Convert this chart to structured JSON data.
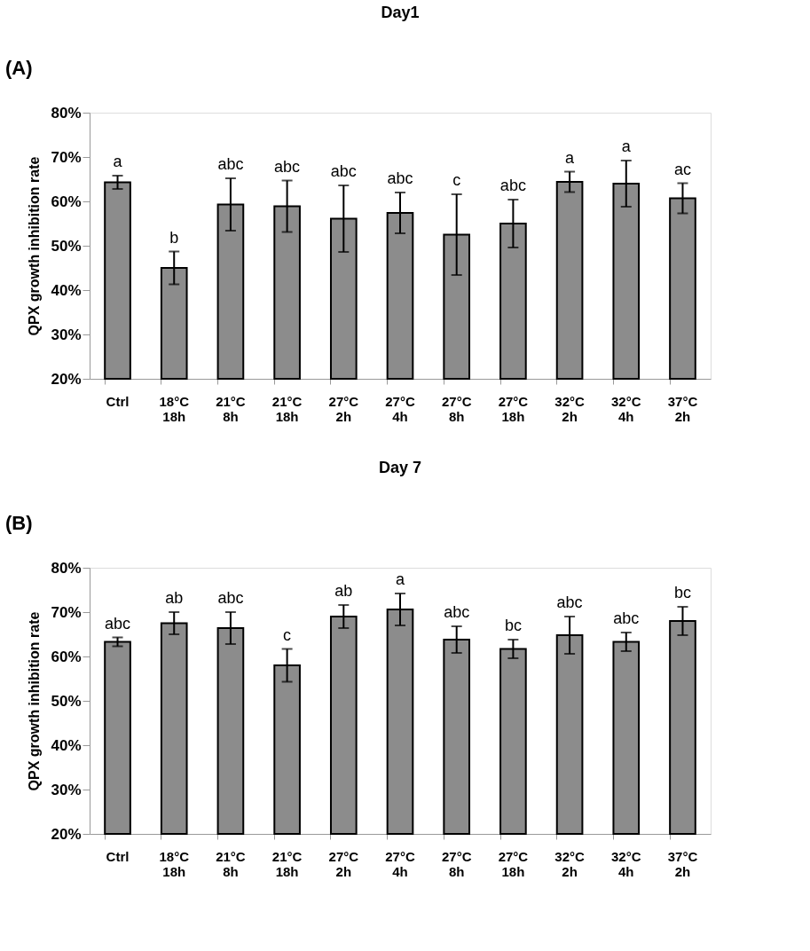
{
  "chart_data": [
    {
      "type": "bar",
      "title": "Day1",
      "ylabel": "QPX growth inhibition rate",
      "categories": [
        "Ctrl",
        "18°C 18h",
        "21°C 8h",
        "21°C 18h",
        "27°C 2h",
        "27°C 4h",
        "27°C 8h",
        "27°C 18h",
        "32°C 2h",
        "32°C 4h",
        "37°C 2h"
      ],
      "values": [
        64.3,
        45.0,
        59.3,
        58.9,
        56.1,
        57.4,
        52.5,
        55.0,
        64.4,
        64.0,
        60.7
      ],
      "errors": [
        1.5,
        3.7,
        5.9,
        5.8,
        7.5,
        4.6,
        9.1,
        5.4,
        2.3,
        5.2,
        3.4
      ],
      "color": "#8c8c8c",
      "ylim": [
        20,
        80
      ],
      "yticks": [
        {
          "value": 20,
          "label": "20%"
        },
        {
          "value": 30,
          "label": "30%"
        },
        {
          "value": 40,
          "label": "40%"
        },
        {
          "value": 50,
          "label": "50%"
        },
        {
          "value": 60,
          "label": "60%"
        },
        {
          "value": 70,
          "label": "70%"
        },
        {
          "value": 80,
          "label": "80%"
        }
      ],
      "grid": false,
      "annotations": [
        "(A)",
        {
          "text": "a",
          "x": "Ctrl",
          "y": 65.8
        },
        {
          "text": "b",
          "x": "18°C 18h",
          "y": 48.7
        },
        {
          "text": "abc",
          "x": "21°C 8h",
          "y": 65.2
        },
        {
          "text": "abc",
          "x": "21°C 18h",
          "y": 64.7
        },
        {
          "text": "abc",
          "x": "27°C 2h",
          "y": 63.6
        },
        {
          "text": "abc",
          "x": "27°C 4h",
          "y": 62.0
        },
        {
          "text": "c",
          "x": "27°C 8h",
          "y": 61.6
        },
        {
          "text": "abc",
          "x": "27°C 18h",
          "y": 60.4
        },
        {
          "text": "a",
          "x": "32°C 2h",
          "y": 66.7
        },
        {
          "text": "a",
          "x": "32°C 4h",
          "y": 69.2
        },
        {
          "text": "ac",
          "x": "37°C 2h",
          "y": 64.1
        }
      ]
    },
    {
      "type": "bar",
      "title": "Day 7",
      "ylabel": "QPX growth inhibition rate",
      "categories": [
        "Ctrl",
        "18°C 18h",
        "21°C 8h",
        "21°C 18h",
        "27°C 2h",
        "27°C 4h",
        "27°C 8h",
        "27°C 18h",
        "32°C 2h",
        "32°C 4h",
        "37°C 2h"
      ],
      "values": [
        63.3,
        67.5,
        66.4,
        58.0,
        69.0,
        70.6,
        63.8,
        61.7,
        64.8,
        63.3,
        68.0
      ],
      "errors": [
        1.0,
        2.5,
        3.6,
        3.7,
        2.6,
        3.6,
        3.0,
        2.1,
        4.2,
        2.1,
        3.2
      ],
      "color": "#8c8c8c",
      "ylim": [
        20,
        80
      ],
      "yticks": [
        {
          "value": 20,
          "label": "20%"
        },
        {
          "value": 30,
          "label": "30%"
        },
        {
          "value": 40,
          "label": "40%"
        },
        {
          "value": 50,
          "label": "50%"
        },
        {
          "value": 60,
          "label": "60%"
        },
        {
          "value": 70,
          "label": "70%"
        },
        {
          "value": 80,
          "label": "80%"
        }
      ],
      "grid": false,
      "annotations": [
        "(B)",
        {
          "text": "abc",
          "x": "Ctrl",
          "y": 64.3
        },
        {
          "text": "ab",
          "x": "18°C 18h",
          "y": 70.0
        },
        {
          "text": "abc",
          "x": "21°C 8h",
          "y": 70.0
        },
        {
          "text": "c",
          "x": "21°C 18h",
          "y": 61.7
        },
        {
          "text": "ab",
          "x": "27°C 2h",
          "y": 71.6
        },
        {
          "text": "a",
          "x": "27°C 4h",
          "y": 74.2
        },
        {
          "text": "abc",
          "x": "27°C 8h",
          "y": 66.8
        },
        {
          "text": "bc",
          "x": "27°C 18h",
          "y": 63.8
        },
        {
          "text": "abc",
          "x": "32°C 2h",
          "y": 69.0
        },
        {
          "text": "abc",
          "x": "32°C 4h",
          "y": 65.4
        },
        {
          "text": "bc",
          "x": "37°C 2h",
          "y": 71.2
        }
      ]
    }
  ]
}
